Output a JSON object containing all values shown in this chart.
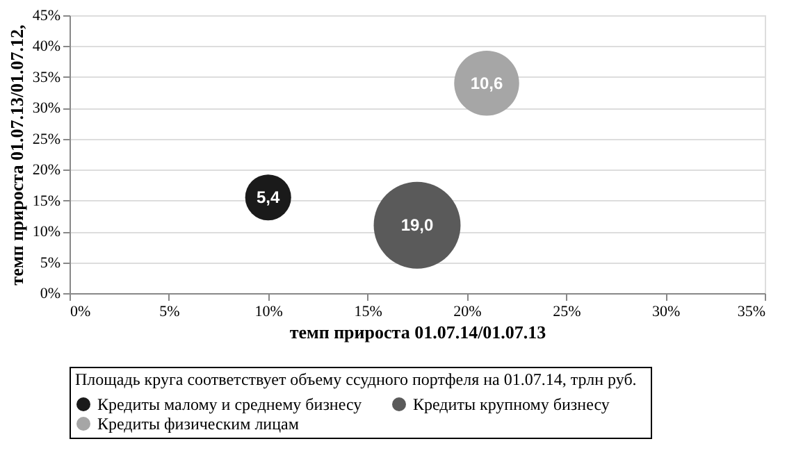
{
  "chart_data": {
    "type": "bubble",
    "xlabel": "темп прироста 01.07.14/01.07.13",
    "ylabel": "темп прироста 01.07.13/01.07.12,",
    "legend_title": "Площадь круга соответствует объему ссудного портфеля на 01.07.14,  трлн  руб.",
    "series": [
      {
        "name": "Кредиты малому и среднему бизнесу",
        "color": "#1a1a1a",
        "x": [
          10
        ],
        "values": [
          15.5
        ],
        "sizes": [
          0.28
        ]
      },
      {
        "name": "Кредиты крупному  бизнесу",
        "color": "#5a5a5a",
        "x": [
          17.5
        ],
        "values": [
          11
        ],
        "sizes": [
          1
        ]
      },
      {
        "name": "Кредиты физическим лицам",
        "color": "#a6a6a6",
        "x": [
          21
        ],
        "values": [
          34
        ],
        "sizes": [
          0.56
        ]
      }
    ],
    "annotations": [
      {
        "text": "5,4",
        "x": 10,
        "y": 15.5
      },
      {
        "text": "19,0",
        "x": 17.5,
        "y": 11
      },
      {
        "text": "10,6",
        "x": 21,
        "y": 34
      }
    ],
    "xlim": [
      0,
      35
    ],
    "xticks": [
      {
        "value": 0,
        "label": "0%"
      },
      {
        "value": 5,
        "label": "5%"
      },
      {
        "value": 10,
        "label": "10%"
      },
      {
        "value": 15,
        "label": "15%"
      },
      {
        "value": 20,
        "label": "20%"
      },
      {
        "value": 25,
        "label": "25%"
      },
      {
        "value": 30,
        "label": "30%"
      },
      {
        "value": 35,
        "label": "35%"
      }
    ],
    "ylim": [
      0,
      45
    ],
    "yticks": [
      {
        "value": 0,
        "label": "0%"
      },
      {
        "value": 5,
        "label": "5%"
      },
      {
        "value": 10,
        "label": "10%"
      },
      {
        "value": 15,
        "label": "15%"
      },
      {
        "value": 20,
        "label": "20%"
      },
      {
        "value": 25,
        "label": "25%"
      },
      {
        "value": 30,
        "label": "30%"
      },
      {
        "value": 35,
        "label": "35%"
      },
      {
        "value": 40,
        "label": "40%"
      },
      {
        "value": 45,
        "label": "45%"
      }
    ],
    "grid": "y",
    "legend": "bottom"
  }
}
